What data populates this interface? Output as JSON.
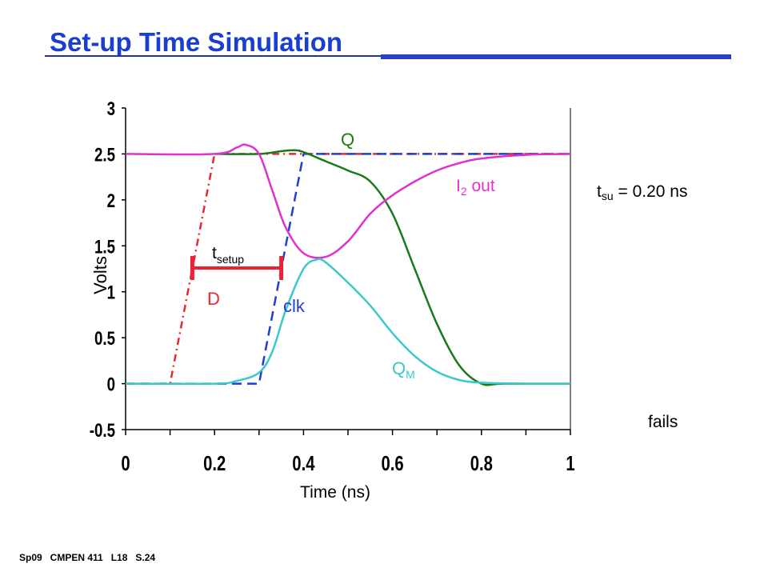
{
  "slide": {
    "title": "Set-up Time Simulation",
    "footer": "Sp09   CMPEN 411   L18   S.24",
    "tsu_main": "t",
    "tsu_sub": "su",
    "tsu_rest": " = 0.20 ns",
    "fails": "fails"
  },
  "chart_data": {
    "type": "line",
    "xlabel": "Time (ns)",
    "ylabel": "Volts",
    "xlim": [
      0,
      1
    ],
    "ylim": [
      -0.5,
      3
    ],
    "xticks": [
      "0",
      "0.2",
      "0.4",
      "0.6",
      "0.8",
      "1"
    ],
    "yticks": [
      "-0.5",
      "0",
      "0.5",
      "1",
      "1.5",
      "2",
      "2.5",
      "3"
    ],
    "colors": {
      "D": "#e8282d",
      "clk": "#1f3fd4",
      "Q": "#1a7a1a",
      "I2out": "#e030d0",
      "QM": "#3cc8c8",
      "tsetup": "#ee2233"
    },
    "series": [
      {
        "name": "D",
        "style": "dash-dot",
        "x": [
          0,
          0.1,
          0.2,
          0.4,
          1
        ],
        "y": [
          0,
          0,
          2.5,
          2.5,
          2.5
        ]
      },
      {
        "name": "clk",
        "style": "dashed",
        "x": [
          0,
          0.3,
          0.4,
          1
        ],
        "y": [
          0,
          0,
          2.5,
          2.5
        ]
      },
      {
        "name": "Q",
        "style": "solid",
        "x": [
          0.2,
          0.3,
          0.35,
          0.38,
          0.4,
          0.45,
          0.5,
          0.55,
          0.6,
          0.65,
          0.7,
          0.75,
          0.8,
          0.85,
          1
        ],
        "y": [
          2.5,
          2.5,
          2.53,
          2.54,
          2.52,
          2.42,
          2.32,
          2.2,
          1.85,
          1.25,
          0.65,
          0.2,
          0.0,
          0.0,
          0.0
        ]
      },
      {
        "name": "I2 out",
        "style": "solid",
        "x": [
          0,
          0.2,
          0.25,
          0.27,
          0.3,
          0.33,
          0.36,
          0.4,
          0.45,
          0.5,
          0.55,
          0.6,
          0.65,
          0.7,
          0.75,
          0.8,
          0.9,
          1
        ],
        "y": [
          2.5,
          2.5,
          2.57,
          2.6,
          2.5,
          2.1,
          1.7,
          1.42,
          1.38,
          1.55,
          1.85,
          2.05,
          2.2,
          2.32,
          2.4,
          2.45,
          2.49,
          2.5
        ]
      },
      {
        "name": "QM",
        "style": "solid",
        "x": [
          0,
          0.2,
          0.25,
          0.3,
          0.33,
          0.36,
          0.4,
          0.43,
          0.45,
          0.5,
          0.55,
          0.6,
          0.65,
          0.7,
          0.75,
          0.8,
          0.9,
          1
        ],
        "y": [
          0,
          0,
          0.03,
          0.12,
          0.35,
          0.8,
          1.25,
          1.35,
          1.32,
          1.1,
          0.85,
          0.55,
          0.3,
          0.13,
          0.04,
          0.01,
          0,
          0
        ]
      }
    ],
    "labels": {
      "Q": "Q",
      "I2_main": "I",
      "I2_sub": "2",
      "I2_rest": " out",
      "D": "D",
      "clk": "clk",
      "QM_main": "Q",
      "QM_sub": "M",
      "tsetup_main": "t",
      "tsetup_sub": "setup"
    },
    "tsetup_bar": {
      "x_start": 0.15,
      "x_end": 0.35,
      "y": 1.25
    }
  }
}
